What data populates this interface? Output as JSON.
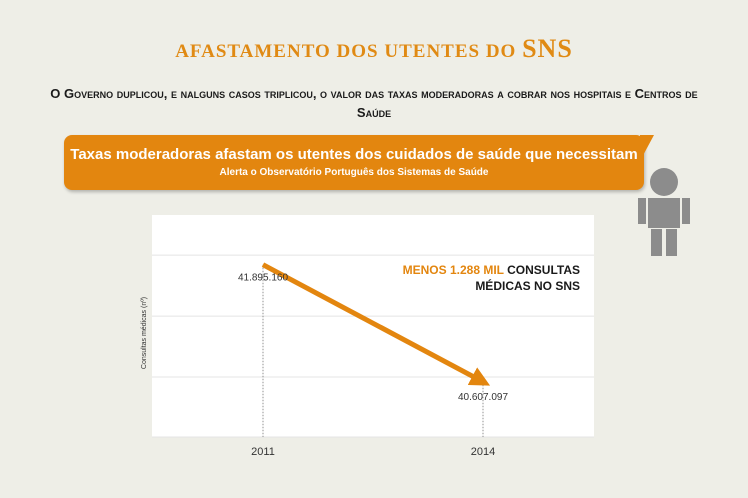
{
  "header": {
    "title_main": "AFASTAMENTO DOS UTENTES DO ",
    "title_accent": "SNS",
    "subtitle": "O Governo duplicou, e nalguns casos triplicou, o valor das taxas moderadoras a cobrar nos hospitais e Centros de Saúde"
  },
  "banner": {
    "headline": "Taxas moderadoras afastam os utentes dos cuidados de saúde que necessitam",
    "source": "Alerta o Observatório Português dos Sistemas de Saúde"
  },
  "annotation": {
    "highlight": "MENOS 1.288 MIL",
    "rest_line1": " CONSULTAS",
    "line2": "MÉDICAS NO SNS"
  },
  "colors": {
    "accent": "#e3860f",
    "background": "#eeeee7",
    "person": "#8c8c8c"
  },
  "icons": {
    "person": "person-icon"
  },
  "chart_data": {
    "type": "line",
    "ylabel": "Consultas médicas (nº)",
    "xlabel": "",
    "categories": [
      "2011",
      "2014"
    ],
    "values": [
      41895160,
      40607097
    ],
    "value_labels": [
      "41.895.160",
      "40.607.097"
    ],
    "ylim": [
      40000000,
      42200000
    ],
    "grid": true,
    "gridline_values": [
      40000000,
      40660000,
      41330000,
      42000000
    ]
  }
}
